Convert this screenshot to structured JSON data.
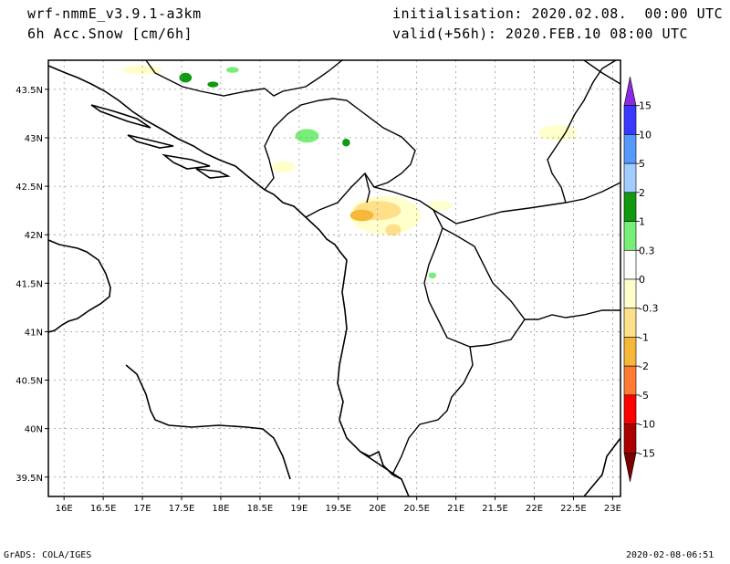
{
  "header": {
    "model": "wrf-nmmE_v3.9.1-a3km",
    "field": "6h Acc.Snow [cm/6h]",
    "init": "initialisation: 2020.02.08.  00:00 UTC",
    "valid": "valid(+56h): 2020.FEB.10 08:00 UTC"
  },
  "footer": {
    "credit": "GrADS: COLA/IGES",
    "timestamp": "2020-02-08-06:51"
  },
  "chart_data": {
    "type": "map",
    "xlim": [
      15.8,
      23.1
    ],
    "ylim": [
      39.3,
      43.8
    ],
    "lon_ticks": [
      "16E",
      "16.5E",
      "17E",
      "17.5E",
      "18E",
      "18.5E",
      "19E",
      "19.5E",
      "20E",
      "20.5E",
      "21E",
      "21.5E",
      "22E",
      "22.5E",
      "23E"
    ],
    "lon_values": [
      16,
      16.5,
      17,
      17.5,
      18,
      18.5,
      19,
      19.5,
      20,
      20.5,
      21,
      21.5,
      22,
      22.5,
      23
    ],
    "lat_ticks": [
      "39.5N",
      "40N",
      "40.5N",
      "41N",
      "41.5N",
      "42N",
      "42.5N",
      "43N",
      "43.5N"
    ],
    "lat_values": [
      39.5,
      40,
      40.5,
      41,
      41.5,
      42,
      42.5,
      43,
      43.5
    ],
    "grid": true,
    "colorbar": {
      "labels": [
        "15",
        "10",
        "5",
        "2",
        "1",
        "0.3",
        "0",
        "-0.3",
        "-1",
        "-2",
        "-5",
        "-10",
        "-15"
      ],
      "colors": [
        "#8a2be2",
        "#3a3aff",
        "#5599ff",
        "#a0ccff",
        "#119911",
        "#77ee77",
        "#ffffff",
        "#ffffcc",
        "#ffe08a",
        "#f5b83a",
        "#ff7a33",
        "#ff0000",
        "#aa0000",
        "#7a0000"
      ]
    },
    "patches": [
      {
        "lon": 17.55,
        "lat": 43.62,
        "color": "#119911",
        "rx": 0.08,
        "ry": 0.05
      },
      {
        "lon": 17.9,
        "lat": 43.55,
        "color": "#119911",
        "rx": 0.07,
        "ry": 0.03
      },
      {
        "lon": 18.15,
        "lat": 43.7,
        "color": "#77ee77",
        "rx": 0.08,
        "ry": 0.03
      },
      {
        "lon": 19.1,
        "lat": 43.02,
        "color": "#77ee77",
        "rx": 0.15,
        "ry": 0.07
      },
      {
        "lon": 19.6,
        "lat": 42.95,
        "color": "#119911",
        "rx": 0.05,
        "ry": 0.04
      },
      {
        "lon": 20.1,
        "lat": 42.2,
        "color": "#ffffcc",
        "rx": 0.45,
        "ry": 0.2
      },
      {
        "lon": 20.0,
        "lat": 42.25,
        "color": "#ffe08a",
        "rx": 0.3,
        "ry": 0.1
      },
      {
        "lon": 19.8,
        "lat": 42.2,
        "color": "#f5b83a",
        "rx": 0.15,
        "ry": 0.06
      },
      {
        "lon": 20.2,
        "lat": 42.05,
        "color": "#ffe08a",
        "rx": 0.1,
        "ry": 0.06
      },
      {
        "lon": 20.7,
        "lat": 41.58,
        "color": "#77ee77",
        "rx": 0.05,
        "ry": 0.03
      },
      {
        "lon": 22.3,
        "lat": 43.05,
        "color": "#ffffcc",
        "rx": 0.25,
        "ry": 0.08
      },
      {
        "lon": 17.0,
        "lat": 43.7,
        "color": "#ffffcc",
        "rx": 0.25,
        "ry": 0.05
      },
      {
        "lon": 18.8,
        "lat": 42.7,
        "color": "#ffffcc",
        "rx": 0.15,
        "ry": 0.06
      },
      {
        "lon": 20.8,
        "lat": 42.3,
        "color": "#ffffcc",
        "rx": 0.15,
        "ry": 0.05
      }
    ]
  }
}
